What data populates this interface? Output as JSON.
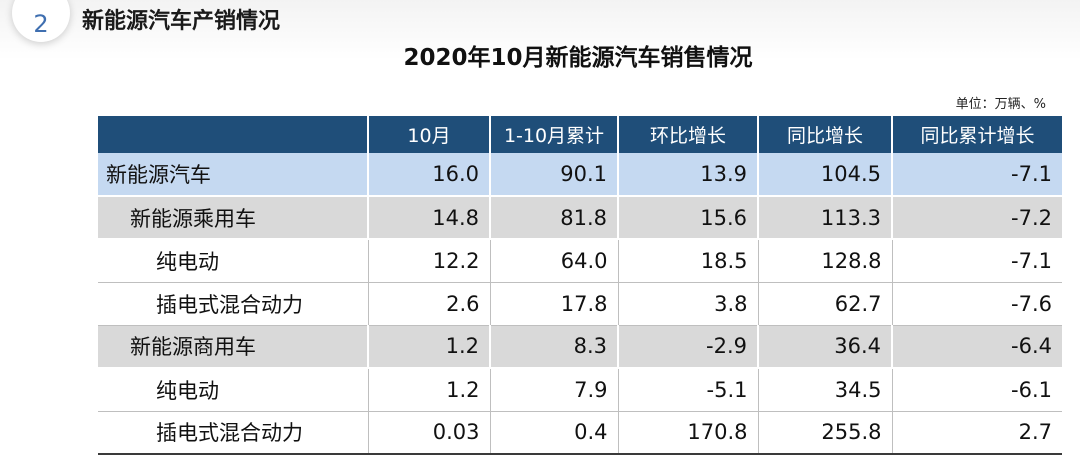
{
  "section": {
    "number": "2",
    "title": "新能源汽车产销情况"
  },
  "table_title": "2020年10月新能源汽车销售情况",
  "unit": "单位：万辆、%",
  "colors": {
    "header_bg": "#1f4e79",
    "total_row_bg": "#c5d9f1",
    "subtotal_row_bg": "#d9d9d9"
  },
  "columns": [
    "",
    "10月",
    "1-10月累计",
    "环比增长",
    "同比增长",
    "同比累计增长"
  ],
  "rows": [
    {
      "level": 0,
      "name": "新能源汽车",
      "values": [
        "16.0",
        "90.1",
        "13.9",
        "104.5",
        "-7.1"
      ]
    },
    {
      "level": 1,
      "name": "新能源乘用车",
      "values": [
        "14.8",
        "81.8",
        "15.6",
        "113.3",
        "-7.2"
      ]
    },
    {
      "level": 2,
      "name": "纯电动",
      "values": [
        "12.2",
        "64.0",
        "18.5",
        "128.8",
        "-7.1"
      ]
    },
    {
      "level": 2,
      "name": "插电式混合动力",
      "values": [
        "2.6",
        "17.8",
        "3.8",
        "62.7",
        "-7.6"
      ]
    },
    {
      "level": 1,
      "name": "新能源商用车",
      "values": [
        "1.2",
        "8.3",
        "-2.9",
        "36.4",
        "-6.4"
      ]
    },
    {
      "level": 2,
      "name": "纯电动",
      "values": [
        "1.2",
        "7.9",
        "-5.1",
        "34.5",
        "-6.1"
      ]
    },
    {
      "level": 2,
      "name": "插电式混合动力",
      "values": [
        "0.03",
        "0.4",
        "170.8",
        "255.8",
        "2.7"
      ]
    }
  ]
}
